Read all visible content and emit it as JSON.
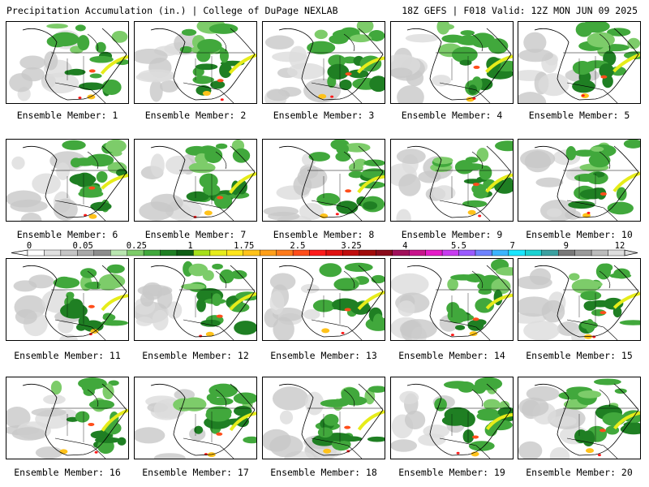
{
  "header": {
    "left": "Precipitation Accumulation (in.) | College of DuPage NEXLAB",
    "right": "18Z GEFS | F018 Valid: 12Z MON JUN 09 2025"
  },
  "member_label_prefix": "Ensemble Member: ",
  "members": [
    {
      "id": "1",
      "label": "Ensemble Member: 1"
    },
    {
      "id": "2",
      "label": "Ensemble Member: 2"
    },
    {
      "id": "3",
      "label": "Ensemble Member: 3"
    },
    {
      "id": "4",
      "label": "Ensemble Member: 4"
    },
    {
      "id": "5",
      "label": "Ensemble Member: 5"
    },
    {
      "id": "6",
      "label": "Ensemble Member: 6"
    },
    {
      "id": "7",
      "label": "Ensemble Member: 7"
    },
    {
      "id": "8",
      "label": "Ensemble Member: 8"
    },
    {
      "id": "9",
      "label": "Ensemble Member: 9"
    },
    {
      "id": "10",
      "label": "Ensemble Member: 10"
    },
    {
      "id": "11",
      "label": "Ensemble Member: 11"
    },
    {
      "id": "12",
      "label": "Ensemble Member: 12"
    },
    {
      "id": "13",
      "label": "Ensemble Member: 13"
    },
    {
      "id": "14",
      "label": "Ensemble Member: 14"
    },
    {
      "id": "15",
      "label": "Ensemble Member: 15"
    },
    {
      "id": "16",
      "label": "Ensemble Member: 16"
    },
    {
      "id": "17",
      "label": "Ensemble Member: 17"
    },
    {
      "id": "18",
      "label": "Ensemble Member: 18"
    },
    {
      "id": "19",
      "label": "Ensemble Member: 19"
    },
    {
      "id": "20",
      "label": "Ensemble Member: 20"
    }
  ],
  "colorbar": {
    "labels": [
      "0",
      "0.05",
      "0.25",
      "1",
      "1.75",
      "2.5",
      "3.25",
      "4",
      "5.5",
      "7",
      "9",
      "12"
    ],
    "colors": [
      "#ffffff",
      "#e0e0e0",
      "#c4c4c4",
      "#a8a8a8",
      "#8c8c8c",
      "#b9e6b0",
      "#7dcc6a",
      "#41a83c",
      "#1f7f23",
      "#0e5d14",
      "#a6e01a",
      "#e6ec1a",
      "#ffe51a",
      "#ffc21a",
      "#ff9f1a",
      "#ff7a1a",
      "#ff4d1a",
      "#ff1a1a",
      "#e01010",
      "#c00c0c",
      "#a00a0a",
      "#8a0a1a",
      "#a0105a",
      "#c8148c",
      "#e61ac8",
      "#c83cf0",
      "#9a5aff",
      "#6e82ff",
      "#3cb4ff",
      "#1ae6ff",
      "#1ad2d2",
      "#3ca0a0",
      "#787878",
      "#9a9a9a",
      "#bcbcbc",
      "#dedede"
    ]
  },
  "colors": {
    "land_green": "#41a83c",
    "light_gray": "#d9d9d9",
    "yellow": "#e6ec1a",
    "red": "#ff1a1a"
  }
}
